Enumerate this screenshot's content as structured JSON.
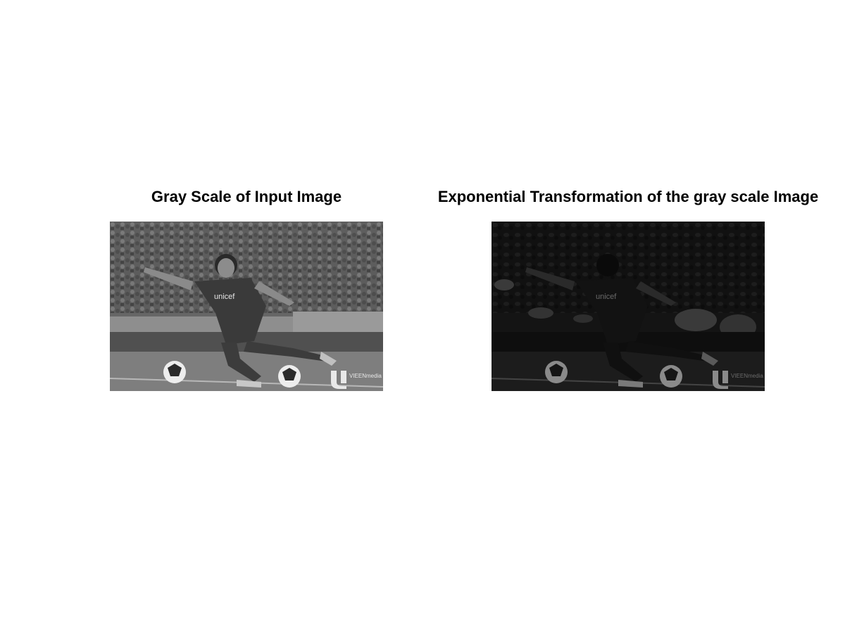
{
  "figure": {
    "panels": [
      {
        "title": "Gray Scale of Input Image",
        "image": {
          "description_icon": "soccer-player-photo",
          "mode": "grayscale",
          "jersey_text": "unicef",
          "watermark": "VIEENmedia"
        }
      },
      {
        "title": "Exponential Transformation of the gray scale Image",
        "image": {
          "description_icon": "soccer-player-photo",
          "mode": "exponential-transformed",
          "jersey_text": "unicef",
          "watermark": "VIEENmedia"
        }
      }
    ]
  }
}
